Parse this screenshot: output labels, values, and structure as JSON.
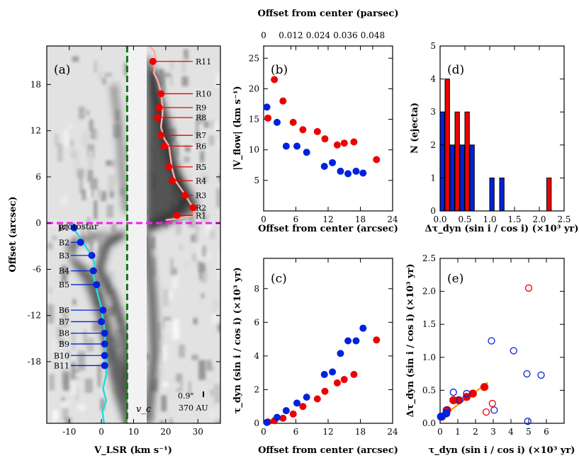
{
  "colors": {
    "red": "#ee0000",
    "blue": "#0022dd",
    "cyan": "#22dddd",
    "pink": "#ffaaaa",
    "magenta": "#ee22ee",
    "green": "#117711",
    "orange": "#ff9900"
  },
  "chart_data": [
    {
      "panel": "a",
      "type": "image",
      "label": "(a)",
      "xlabel": "V_LSR (km s⁻¹)",
      "ylabel": "Offset (arcsec)",
      "xlim": [
        -17,
        37
      ],
      "ylim": [
        -26,
        23
      ],
      "xticks": [
        -10,
        0,
        10,
        20,
        30
      ],
      "xtick_labels": [
        "-10",
        "0",
        "10",
        "20",
        "30"
      ],
      "yticks": [
        -18,
        -12,
        -6,
        0,
        6,
        12,
        18
      ],
      "ytick_labels": [
        "-18",
        "-12",
        "-6",
        "0",
        "6",
        "12",
        "18"
      ],
      "vc": 8,
      "vc_label": "v_c",
      "protostar_label": "protostar",
      "scalebar": "0.9\"",
      "scale_label": "370 AU",
      "red_knots": [
        {
          "name": "R1",
          "v": 23.5,
          "off": 1
        },
        {
          "name": "R2",
          "v": 28.5,
          "off": 2
        },
        {
          "name": "R3",
          "v": 26,
          "off": 3.6
        },
        {
          "name": "R4",
          "v": 22,
          "off": 5.5
        },
        {
          "name": "R5",
          "v": 21,
          "off": 7.3
        },
        {
          "name": "R6",
          "v": 19.5,
          "off": 10
        },
        {
          "name": "R7",
          "v": 18.5,
          "off": 11.4
        },
        {
          "name": "R8",
          "v": 17.5,
          "off": 13.7
        },
        {
          "name": "R9",
          "v": 18,
          "off": 15
        },
        {
          "name": "R10",
          "v": 18.5,
          "off": 16.8
        },
        {
          "name": "R11",
          "v": 16,
          "off": 21
        }
      ],
      "blue_knots": [
        {
          "name": "B1",
          "v": -8.5,
          "off": -0.6
        },
        {
          "name": "B2",
          "v": -6.5,
          "off": -2.5
        },
        {
          "name": "B3",
          "v": -3,
          "off": -4.2
        },
        {
          "name": "B4",
          "v": -2.5,
          "off": -6.2
        },
        {
          "name": "B5",
          "v": -1.5,
          "off": -8
        },
        {
          "name": "B6",
          "v": 0.5,
          "off": -11.3
        },
        {
          "name": "B7",
          "v": 0,
          "off": -12.8
        },
        {
          "name": "B8",
          "v": 1,
          "off": -14.3
        },
        {
          "name": "B9",
          "v": 1,
          "off": -15.7
        },
        {
          "name": "B10",
          "v": 1,
          "off": -17.2
        },
        {
          "name": "B11",
          "v": 1,
          "off": -18.5
        }
      ],
      "cyan_curve": [
        [
          -10,
          0
        ],
        [
          -9,
          -0.5
        ],
        [
          -7,
          -1.7
        ],
        [
          -5,
          -3
        ],
        [
          -3,
          -4.2
        ],
        [
          -2,
          -5.5
        ],
        [
          -2.5,
          -6.8
        ],
        [
          -1.8,
          -8
        ],
        [
          -1,
          -9.5
        ],
        [
          0,
          -11
        ],
        [
          0.5,
          -12.5
        ],
        [
          1,
          -14
        ],
        [
          1.2,
          -16
        ],
        [
          1.5,
          -18
        ],
        [
          1.6,
          -19.5
        ],
        [
          0.5,
          -21.5
        ],
        [
          1.5,
          -23
        ],
        [
          0.3,
          -24.5
        ],
        [
          0.8,
          -26
        ]
      ],
      "pink_curve": [
        [
          15,
          23
        ],
        [
          16.5,
          22.3
        ],
        [
          17,
          21
        ],
        [
          16.3,
          19.5
        ],
        [
          17.5,
          18.5
        ],
        [
          18.5,
          17
        ],
        [
          19,
          15
        ],
        [
          19,
          14
        ],
        [
          18.5,
          12.5
        ],
        [
          19.5,
          11
        ],
        [
          21,
          10
        ],
        [
          21.5,
          8.5
        ],
        [
          22,
          7
        ],
        [
          23,
          5.5
        ],
        [
          25.5,
          4
        ],
        [
          27,
          3
        ],
        [
          28.5,
          2
        ],
        [
          29,
          1
        ],
        [
          24,
          0.6
        ],
        [
          20,
          0.4
        ]
      ]
    },
    {
      "panel": "b",
      "type": "scatter",
      "label": "(b)",
      "xlabel": "Offset from center (arcsec)",
      "ylabel": "|V_flow| (km s⁻¹)",
      "top_xlabel": "Offset from center (parsec)",
      "top_ticks": [
        "0",
        "0.012",
        "0.024",
        "0.036",
        "0.048"
      ],
      "xlim": [
        0,
        24
      ],
      "ylim": [
        0,
        27
      ],
      "xticks": [
        0,
        6,
        12,
        18,
        24
      ],
      "xtick_labels": [
        "0",
        "6",
        "12",
        "18",
        "24"
      ],
      "yticks": [
        5,
        10,
        15,
        20,
        25
      ],
      "ytick_labels": [
        "5",
        "10",
        "15",
        "20",
        "25"
      ],
      "series": [
        {
          "name": "red",
          "x": [
            0.8,
            2,
            3.6,
            5.5,
            7.3,
            10,
            11.4,
            13.7,
            15,
            16.8,
            21
          ],
          "y": [
            15.2,
            21.5,
            18,
            14.5,
            13.3,
            13,
            11.8,
            10.8,
            11.1,
            11.3,
            8.4
          ]
        },
        {
          "name": "blue",
          "x": [
            0.6,
            2.5,
            4.2,
            6.2,
            8,
            11.3,
            12.8,
            14.3,
            15.7,
            17.2,
            18.5
          ],
          "y": [
            17,
            14.5,
            10.6,
            10.6,
            9.6,
            7.3,
            7.9,
            6.5,
            6.1,
            6.5,
            6.2
          ]
        }
      ]
    },
    {
      "panel": "c",
      "type": "scatter",
      "label": "(c)",
      "xlabel": "Offset from center (arcsec)",
      "ylabel": "τ_dyn (sin i / cos i) (×10³ yr)",
      "xlim": [
        0,
        24
      ],
      "ylim": [
        0,
        9.8
      ],
      "xticks": [
        0,
        6,
        12,
        18,
        24
      ],
      "xtick_labels": [
        "0",
        "6",
        "12",
        "18",
        "24"
      ],
      "yticks": [
        0,
        2,
        4,
        6,
        8
      ],
      "ytick_labels": [
        "0",
        "2",
        "4",
        "6",
        "8"
      ],
      "series": [
        {
          "name": "red",
          "x": [
            0.8,
            2,
            3.6,
            5.5,
            7.3,
            10,
            11.4,
            13.7,
            15,
            16.8,
            21
          ],
          "y": [
            0.08,
            0.15,
            0.3,
            0.55,
            1.0,
            1.45,
            1.9,
            2.4,
            2.6,
            2.9,
            4.95
          ]
        },
        {
          "name": "blue",
          "x": [
            0.6,
            2.5,
            4.2,
            6.2,
            8,
            11.3,
            12.8,
            14.3,
            15.7,
            17.2,
            18.5
          ],
          "y": [
            0.05,
            0.35,
            0.75,
            1.2,
            1.55,
            2.9,
            3.05,
            4.15,
            4.9,
            4.9,
            5.65
          ]
        }
      ]
    },
    {
      "panel": "d",
      "type": "bar",
      "label": "(d)",
      "xlabel": "Δτ_dyn (sin i / cos i) (×10³ yr)",
      "ylabel": "N (ejecta)",
      "xlim": [
        0,
        2.5
      ],
      "ylim": [
        0,
        5
      ],
      "xticks": [
        0,
        0.5,
        1,
        1.5,
        2,
        2.5
      ],
      "xtick_labels": [
        "0.0",
        "0.5",
        "1.0",
        "1.5",
        "2.0",
        "2.5"
      ],
      "yticks": [
        0,
        1,
        2,
        3,
        4,
        5
      ],
      "ytick_labels": [
        "0",
        "1",
        "2",
        "3",
        "4",
        "5"
      ],
      "bin_edges": [
        0,
        0.2,
        0.4,
        0.6,
        1.0,
        1.2,
        2.1
      ],
      "series": [
        {
          "name": "blue",
          "bins": [
            [
              0,
              3
            ],
            [
              0.2,
              2
            ],
            [
              0.4,
              2
            ],
            [
              0.6,
              2
            ],
            [
              1.0,
              1
            ],
            [
              1.2,
              1
            ]
          ]
        },
        {
          "name": "red",
          "bins": [
            [
              0.1,
              4
            ],
            [
              0.3,
              3
            ],
            [
              0.5,
              3
            ],
            [
              2.15,
              1
            ]
          ]
        }
      ]
    },
    {
      "panel": "e",
      "type": "scatter",
      "label": "(e)",
      "xlabel": "τ_dyn (sin i / cos i) (×10³ yr)",
      "ylabel": "Δτ_dyn (sin i / cos i) (×10³ yr)",
      "xlim": [
        0,
        7
      ],
      "ylim": [
        0,
        2.5
      ],
      "xticks": [
        0,
        1,
        2,
        3,
        4,
        5,
        6
      ],
      "xtick_labels": [
        "0",
        "1",
        "2",
        "3",
        "4",
        "5",
        "6"
      ],
      "yticks": [
        0,
        0.5,
        1,
        1.5,
        2,
        2.5
      ],
      "ytick_labels": [
        "0.0",
        "0.5",
        "1.0",
        "1.5",
        "2.0",
        "2.5"
      ],
      "fit": {
        "x": [
          0,
          2.7
        ],
        "y": [
          0.08,
          0.62
        ]
      },
      "series": [
        {
          "name": "red filled",
          "x": [
            0.1,
            0.4,
            0.75,
            1.05,
            1.5,
            1.85,
            2.5
          ],
          "y": [
            0.1,
            0.2,
            0.35,
            0.35,
            0.4,
            0.45,
            0.55
          ]
        },
        {
          "name": "blue filled",
          "x": [
            0.05,
            0.35
          ],
          "y": [
            0.1,
            0.15
          ]
        },
        {
          "name": "blue open",
          "x": [
            0.35,
            0.75,
            1.1,
            1.5,
            2.9,
            3.05,
            4.15,
            4.9,
            4.95,
            5.7
          ],
          "y": [
            0.2,
            0.47,
            0.35,
            0.45,
            1.25,
            0.2,
            1.1,
            0.75,
            0.03,
            0.73
          ]
        },
        {
          "name": "red open",
          "x": [
            2.6,
            2.95,
            5.0
          ],
          "y": [
            0.17,
            0.3,
            2.05
          ]
        }
      ]
    }
  ]
}
